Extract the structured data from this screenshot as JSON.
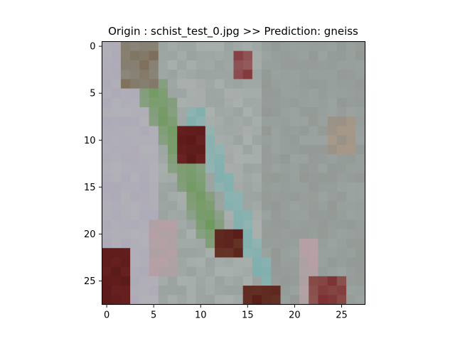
{
  "chart_data": {
    "type": "heatmap",
    "title": "Origin : schist_test_0.jpg >> Prediction: gneiss",
    "xlabel": "",
    "ylabel": "",
    "grid": false,
    "image_size": [
      28,
      28
    ],
    "xlim": [
      -0.5,
      27.5
    ],
    "ylim": [
      27.5,
      -0.5
    ],
    "x_ticks": [
      0,
      5,
      10,
      15,
      20,
      25
    ],
    "y_ticks": [
      0,
      5,
      10,
      15,
      20,
      25
    ],
    "x_tick_labels": [
      "0",
      "5",
      "10",
      "15",
      "20",
      "25"
    ],
    "y_tick_labels": [
      "0",
      "5",
      "10",
      "15",
      "20",
      "25"
    ]
  },
  "palette": {
    "base": "#9aa3a0",
    "base_light": "#b4b8b6",
    "lavender": "#aeaab8",
    "green": "#6f9a5c",
    "teal": "#7fb0ae",
    "dark_red": "#5a1a18",
    "maroon": "#7a2a2c",
    "brown": "#6e5236",
    "pink": "#b8a0a6",
    "tan": "#a89a88",
    "grey_dark": "#8a8a86"
  }
}
